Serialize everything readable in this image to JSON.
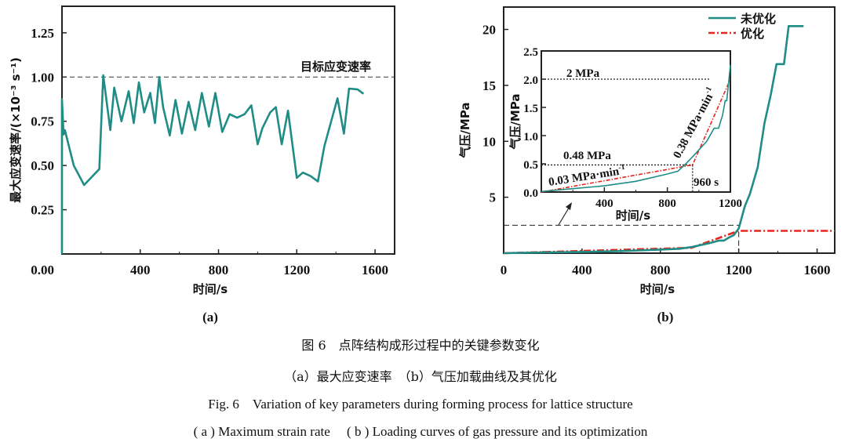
{
  "colors": {
    "unoptimized": "#1f8c86",
    "optimized": "#e8251d",
    "axis": "#222222"
  },
  "chart_data": [
    {
      "type": "line",
      "panel": "(a)",
      "xlabel": "时间/s",
      "ylabel": "最大应变速率/(×10⁻³ s⁻¹)",
      "xlim": [
        0,
        1700
      ],
      "ylim": [
        0,
        1.4
      ],
      "xticks": [
        0,
        400,
        800,
        1200,
        1600
      ],
      "xtick_labels": [
        "",
        "400",
        "800",
        "1200",
        "1600"
      ],
      "yticks": [
        0,
        0.25,
        0.5,
        0.75,
        1.0,
        1.25
      ],
      "ytick_labels": [
        "0.00",
        "0.25",
        "0.50",
        "0.75",
        "1.00",
        "1.25"
      ],
      "reference_line": {
        "y": 1.0,
        "label": "目标应变速率",
        "style": "dashed"
      },
      "series": [
        {
          "x": [
            0,
            0,
            8,
            15,
            60,
            113,
            191,
            211,
            247,
            267,
            304,
            341,
            367,
            393,
            420,
            451,
            475,
            497,
            517,
            551,
            580,
            613,
            647,
            681,
            715,
            751,
            784,
            819,
            857,
            895,
            933,
            968,
            1000,
            1024,
            1064,
            1093,
            1123,
            1155,
            1200,
            1231,
            1271,
            1308,
            1341,
            1408,
            1441,
            1467,
            1511,
            1541
          ],
          "y": [
            0,
            0.875,
            0.675,
            0.7,
            0.5,
            0.39,
            0.48,
            1.01,
            0.7,
            0.94,
            0.75,
            0.92,
            0.74,
            0.97,
            0.8,
            0.91,
            0.74,
            1.0,
            0.83,
            0.67,
            0.87,
            0.68,
            0.86,
            0.7,
            0.91,
            0.72,
            0.91,
            0.69,
            0.79,
            0.77,
            0.79,
            0.84,
            0.62,
            0.71,
            0.8,
            0.83,
            0.62,
            0.81,
            0.43,
            0.46,
            0.44,
            0.41,
            0.61,
            0.88,
            0.68,
            0.935,
            0.93,
            0.905
          ]
        }
      ]
    },
    {
      "type": "line",
      "panel": "(b)",
      "xlabel": "时间/s",
      "ylabel": "气压/MPa",
      "xlim": [
        0,
        1690
      ],
      "ylim": [
        0,
        22
      ],
      "xticks": [
        0,
        400,
        800,
        1200,
        1600
      ],
      "xtick_labels": [
        "0",
        "400",
        "800",
        "1200",
        "1600"
      ],
      "yticks": [
        5,
        10,
        15,
        20
      ],
      "ytick_labels": [
        "5",
        "10",
        "15",
        "20"
      ],
      "legend": {
        "placement": "top-right",
        "entries": [
          "未优化",
          "优化"
        ]
      },
      "series": [
        {
          "name": "未优化",
          "style": "solid",
          "x": [
            0,
            200,
            400,
            600,
            800,
            900,
            960,
            1050,
            1100,
            1125,
            1150,
            1175,
            1200,
            1231,
            1257,
            1297,
            1331,
            1364,
            1393,
            1431,
            1455,
            1531
          ],
          "y": [
            0,
            0.06,
            0.11,
            0.19,
            0.32,
            0.4,
            0.55,
            0.9,
            1.13,
            1.13,
            1.4,
            1.62,
            2.2,
            4.2,
            5.3,
            7.7,
            11.6,
            14.2,
            16.9,
            16.9,
            20.3,
            20.3
          ]
        },
        {
          "name": "优化",
          "style": "dash-dot",
          "x": [
            0,
            960,
            1200,
            1690
          ],
          "y": [
            0,
            0.48,
            2.0,
            2.0
          ]
        }
      ],
      "zoom_box": {
        "x": [
          0,
          1200
        ],
        "y": [
          0,
          2.5
        ]
      },
      "inset": {
        "xlabel": "时间/s",
        "ylabel": "气压/MPa",
        "xlim": [
          0,
          1200
        ],
        "ylim": [
          0,
          2.5
        ],
        "xticks": [
          400,
          800,
          1200
        ],
        "xtick_labels": [
          "400",
          "800",
          "1200"
        ],
        "yticks": [
          0,
          0.5,
          1.0,
          1.5,
          2.0,
          2.5
        ],
        "ytick_labels": [
          "0.0",
          "0.5",
          "1.0",
          "1.5",
          "2.0",
          "2.5"
        ],
        "series": [
          {
            "name": "未优化",
            "x": [
              0,
              200,
              400,
              600,
              800,
              867,
              917,
              975,
              1050,
              1097,
              1125,
              1150,
              1167,
              1177,
              1200
            ],
            "y": [
              0.01,
              0.06,
              0.11,
              0.19,
              0.32,
              0.37,
              0.5,
              0.67,
              0.9,
              1.13,
              1.13,
              1.36,
              1.62,
              1.62,
              2.25
            ]
          },
          {
            "name": "优化",
            "x": [
              0,
              960,
              1200
            ],
            "y": [
              0,
              0.48,
              2.0
            ]
          }
        ],
        "annotations": {
          "p2": "2 MPa",
          "p048": "0.48 MPa",
          "rate1": "0.03 MPa·min",
          "rate2": "0.38 MPa·min",
          "exp": "-1",
          "t960": "960 s"
        },
        "guide_values": {
          "y_high": 2.0,
          "y_low": 0.48,
          "x": 960
        }
      }
    }
  ],
  "captions": {
    "cn_title": "图 6　点阵结构成形过程中的关键参数变化",
    "cn_sub": "（a）最大应变速率　（b）气压加载曲线及其优化",
    "en_title": "Fig. 6　Variation of key parameters during forming process for lattice structure",
    "en_sub": "( a )  Maximum strain rate　 ( b )  Loading curves of gas pressure and its optimization"
  }
}
